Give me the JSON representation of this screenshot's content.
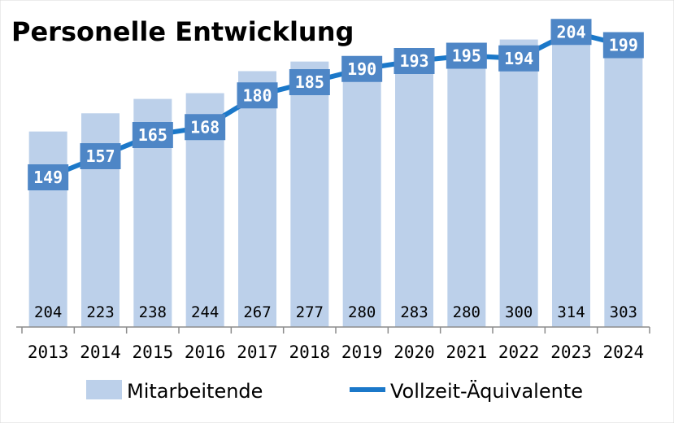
{
  "chart_data": {
    "type": "bar",
    "title": "Personelle Entwicklung",
    "categories": [
      "2013",
      "2014",
      "2015",
      "2016",
      "2017",
      "2018",
      "2019",
      "2020",
      "2021",
      "2022",
      "2023",
      "2024"
    ],
    "series": [
      {
        "name": "Mitarbeitende",
        "kind": "bar",
        "values": [
          204,
          223,
          238,
          244,
          267,
          277,
          280,
          283,
          280,
          300,
          314,
          303
        ],
        "color": "#bcd0ea"
      },
      {
        "name": "Vollzeit-Äquivalente",
        "kind": "line",
        "values": [
          149,
          157,
          165,
          168,
          180,
          185,
          190,
          193,
          195,
          194,
          204,
          199
        ],
        "color": "#1b78c9",
        "label_bg": "#4e86c6"
      }
    ],
    "bar_labels": [
      "204",
      "223",
      "238",
      "244",
      "267",
      "277",
      "280",
      "283",
      "280",
      "300",
      "314",
      "303"
    ],
    "line_labels": [
      "149",
      "157",
      "165",
      "168",
      "180",
      "185",
      "190",
      "193",
      "195",
      "194",
      "204",
      "199"
    ],
    "xlabel": "",
    "ylabel": "",
    "grid": false,
    "legend": "bottom",
    "legend_labels": {
      "bar": "Mitarbeitende",
      "line": "Vollzeit-Äquivalente"
    }
  }
}
